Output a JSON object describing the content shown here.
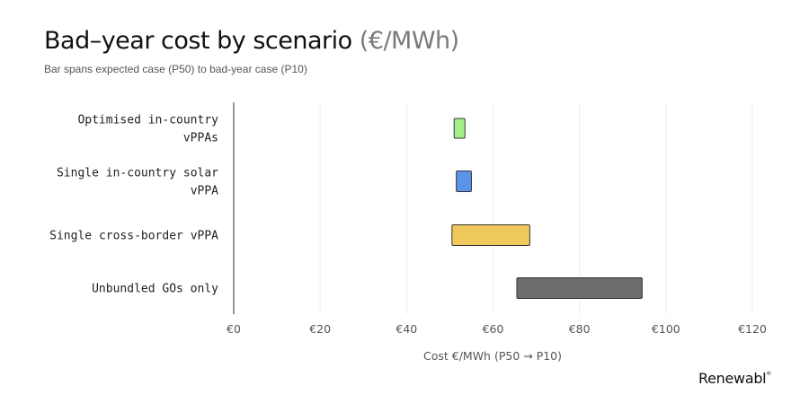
{
  "header": {
    "title_main": "Bad–year cost by scenario",
    "title_unit": "(€/MWh)",
    "subtitle": "Bar spans expected case (P50) to bad-year case (P10)"
  },
  "brand": {
    "name": "Renewabl",
    "mark": "®"
  },
  "chart_data": {
    "type": "bar",
    "orientation": "horizontal",
    "title": "Bad–year cost by scenario (€/MWh)",
    "subtitle": "Bar spans expected case (P50) to bad-year case (P10)",
    "xlabel": "Cost €/MWh (P50 → P10)",
    "ylabel": "",
    "xlim": [
      0,
      120
    ],
    "xticks": [
      0,
      20,
      40,
      60,
      80,
      100,
      120
    ],
    "tick_prefix": "€",
    "grid": "vertical",
    "categories": [
      [
        "Optimised in-country",
        "vPPAs"
      ],
      [
        "Single in-country solar",
        "vPPA"
      ],
      [
        "Single cross-border vPPA"
      ],
      [
        "Unbundled GOs only"
      ]
    ],
    "p50": [
      51,
      51.5,
      50.5,
      65.5
    ],
    "p10": [
      53.5,
      55,
      68.5,
      94.5
    ],
    "colors": [
      "#a3f08a",
      "#5b93e8",
      "#f0c95c",
      "#6b6d6b"
    ],
    "stroke": "#333333"
  }
}
